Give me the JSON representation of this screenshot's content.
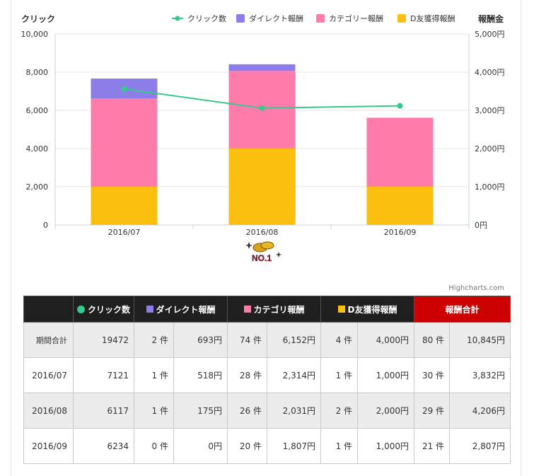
{
  "chart_data": {
    "type": "bar",
    "categories": [
      "2016/07",
      "2016/08",
      "2016/09"
    ],
    "left_axis": {
      "title": "クリック",
      "min": 0,
      "max": 10000,
      "ticks": [
        "0",
        "2,000",
        "4,000",
        "6,000",
        "8,000",
        "10,000"
      ]
    },
    "right_axis": {
      "title": "報酬金",
      "min": 0,
      "max": 5000,
      "ticks": [
        "0円",
        "1,000円",
        "2,000円",
        "3,000円",
        "4,000円",
        "5,000円"
      ]
    },
    "series": [
      {
        "name": "D友獲得報酬",
        "kind": "bar",
        "axis": "right",
        "color": "#fbbf0f",
        "values": [
          1000,
          2000,
          1000
        ]
      },
      {
        "name": "カテゴリー報酬",
        "kind": "bar",
        "axis": "right",
        "color": "#ff7bab",
        "values": [
          2314,
          2031,
          1807
        ]
      },
      {
        "name": "ダイレクト報酬",
        "kind": "bar",
        "axis": "right",
        "color": "#8b7ee8",
        "values": [
          518,
          175,
          0
        ]
      },
      {
        "name": "クリック数",
        "kind": "line",
        "axis": "left",
        "color": "#35c98a",
        "values": [
          7121,
          6117,
          6234
        ]
      }
    ],
    "legend": [
      "クリック数",
      "ダイレクト報酬",
      "カテゴリー報酬",
      "D友獲得報酬"
    ],
    "legend_position": "top-right",
    "grid": true
  },
  "badge_text": "NO.1",
  "credits": "Highcharts.com",
  "table": {
    "headers": {
      "clicks": "クリック数",
      "direct": "ダイレクト報酬",
      "category": "カテゴリ報酬",
      "dfriend": "D友獲得報酬",
      "total": "報酬合計"
    },
    "colors": {
      "clicks": "#35c98a",
      "direct": "#8b7ee8",
      "category": "#ff7bab",
      "dfriend": "#fbbf0f",
      "total_bg": "#cc0000"
    },
    "rows": [
      {
        "label": "期間合計",
        "clicks": "19472",
        "direct_n": "2 件",
        "direct_y": "693円",
        "cat_n": "74 件",
        "cat_y": "6,152円",
        "df_n": "4 件",
        "df_y": "4,000円",
        "tot_n": "80 件",
        "tot_y": "10,845円"
      },
      {
        "label": "2016/07",
        "clicks": "7121",
        "direct_n": "1 件",
        "direct_y": "518円",
        "cat_n": "28 件",
        "cat_y": "2,314円",
        "df_n": "1 件",
        "df_y": "1,000円",
        "tot_n": "30 件",
        "tot_y": "3,832円"
      },
      {
        "label": "2016/08",
        "clicks": "6117",
        "direct_n": "1 件",
        "direct_y": "175円",
        "cat_n": "26 件",
        "cat_y": "2,031円",
        "df_n": "2 件",
        "df_y": "2,000円",
        "tot_n": "29 件",
        "tot_y": "4,206円"
      },
      {
        "label": "2016/09",
        "clicks": "6234",
        "direct_n": "0 件",
        "direct_y": "0円",
        "cat_n": "20 件",
        "cat_y": "1,807円",
        "df_n": "1 件",
        "df_y": "1,000円",
        "tot_n": "21 件",
        "tot_y": "2,807円"
      }
    ]
  }
}
